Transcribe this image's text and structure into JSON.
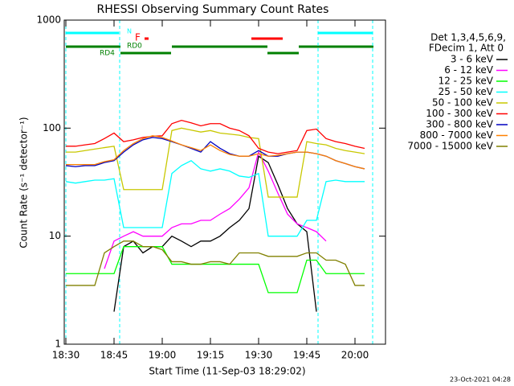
{
  "chart_data": {
    "type": "line",
    "title": "RHESSI Observing Summary Count Rates",
    "xlabel": "Start Time (11-Sep-03 18:29:02)",
    "ylabel": "Count Rate (s⁻¹ detector⁻¹)",
    "footer": "23-Oct-2021 04:28",
    "legend_header": [
      "Det 1,3,4,5,6,9,",
      "FDecim 1, Att 0"
    ],
    "annotations": [
      {
        "text": "N",
        "color": "#00ffff"
      },
      {
        "text": "F",
        "color": "#ff0000"
      },
      {
        "text": "RD0",
        "color": "#008000"
      },
      {
        "text": "RD4",
        "color": "#008000"
      }
    ],
    "log_y": true,
    "xlim": [
      1109.5,
      1209.5
    ],
    "ylim": [
      1,
      1000
    ],
    "xticks": [
      {
        "value": 1110,
        "label": "18:30"
      },
      {
        "value": 1125,
        "label": "18:45"
      },
      {
        "value": 1140,
        "label": "19:00"
      },
      {
        "value": 1155,
        "label": "19:15"
      },
      {
        "value": 1170,
        "label": "19:30"
      },
      {
        "value": 1185,
        "label": "19:45"
      },
      {
        "value": 1200,
        "label": "20:00"
      }
    ],
    "yticks": [
      1,
      10,
      100,
      1000
    ],
    "x": [
      1110,
      1113,
      1116,
      1119,
      1122,
      1125,
      1128,
      1131,
      1134,
      1137,
      1140,
      1143,
      1146,
      1149,
      1152,
      1155,
      1158,
      1161,
      1164,
      1167,
      1170,
      1173,
      1176,
      1179,
      1182,
      1185,
      1188,
      1191,
      1194,
      1197,
      1200,
      1203
    ],
    "series": [
      {
        "name": "3 - 6 keV",
        "color": "#000000",
        "values": [
          null,
          null,
          null,
          null,
          null,
          2,
          8,
          9,
          7,
          8,
          8,
          10,
          9,
          8,
          9,
          9,
          10,
          12,
          14,
          18,
          55,
          48,
          30,
          18,
          13,
          11,
          2,
          null,
          null,
          null,
          null,
          null
        ]
      },
      {
        "name": "6 - 12 keV",
        "color": "#ff00ff",
        "values": [
          null,
          null,
          null,
          null,
          5,
          9,
          10,
          11,
          10,
          10,
          10,
          12,
          13,
          13,
          14,
          14,
          16,
          18,
          22,
          28,
          60,
          40,
          25,
          16,
          13,
          12,
          11,
          9,
          null,
          null,
          null,
          null
        ]
      },
      {
        "name": "12 - 25 keV",
        "color": "#00ff00",
        "values": [
          4.5,
          4.5,
          4.5,
          4.5,
          4.5,
          4.5,
          8,
          8,
          8,
          8,
          8,
          5.5,
          5.5,
          5.5,
          5.5,
          5.5,
          5.5,
          5.5,
          5.5,
          5.5,
          5.5,
          3,
          3,
          3,
          3,
          6,
          6,
          4.5,
          4.5,
          4.5,
          4.5,
          4.5
        ]
      },
      {
        "name": "25 - 50 keV",
        "color": "#00ffff",
        "values": [
          32,
          31,
          32,
          33,
          33,
          34,
          12,
          12,
          12,
          12,
          12,
          38,
          45,
          50,
          42,
          40,
          42,
          40,
          36,
          35,
          38,
          10,
          10,
          10,
          10,
          14,
          14,
          32,
          33,
          32,
          32,
          32
        ]
      },
      {
        "name": "50 - 100 keV",
        "color": "#c8c800",
        "values": [
          60,
          60,
          62,
          64,
          66,
          68,
          27,
          27,
          27,
          27,
          27,
          95,
          100,
          96,
          92,
          95,
          90,
          88,
          86,
          82,
          80,
          23,
          23,
          23,
          23,
          75,
          72,
          70,
          65,
          62,
          60,
          58
        ]
      },
      {
        "name": "100 - 300 keV",
        "color": "#ff0000",
        "values": [
          68,
          68,
          70,
          72,
          80,
          90,
          75,
          78,
          82,
          84,
          85,
          110,
          118,
          112,
          105,
          110,
          110,
          100,
          95,
          85,
          65,
          60,
          58,
          60,
          62,
          95,
          98,
          80,
          75,
          72,
          68,
          65
        ]
      },
      {
        "name": "300 - 800 keV",
        "color": "#0000c0",
        "values": [
          45,
          44,
          45,
          45,
          48,
          50,
          60,
          70,
          78,
          82,
          80,
          75,
          70,
          65,
          60,
          75,
          65,
          58,
          55,
          55,
          62,
          55,
          55,
          58,
          60,
          60,
          58,
          55,
          50,
          47,
          44,
          42
        ]
      },
      {
        "name": "800 - 7000 keV",
        "color": "#ff8000",
        "values": [
          46,
          46,
          46,
          46,
          49,
          51,
          62,
          72,
          80,
          85,
          82,
          76,
          70,
          66,
          62,
          70,
          62,
          57,
          55,
          55,
          58,
          55,
          56,
          58,
          60,
          60,
          58,
          55,
          50,
          47,
          44,
          42
        ]
      },
      {
        "name": "7000 - 15000 keV",
        "color": "#808000",
        "values": [
          3.5,
          3.5,
          3.5,
          3.5,
          7,
          8,
          9,
          9,
          8,
          8,
          7.5,
          5.8,
          5.8,
          5.5,
          5.5,
          5.8,
          5.8,
          5.5,
          7,
          7,
          7,
          6.5,
          6.5,
          6.5,
          6.5,
          7,
          7,
          6,
          6,
          5.5,
          3.5,
          3.5
        ]
      }
    ]
  }
}
